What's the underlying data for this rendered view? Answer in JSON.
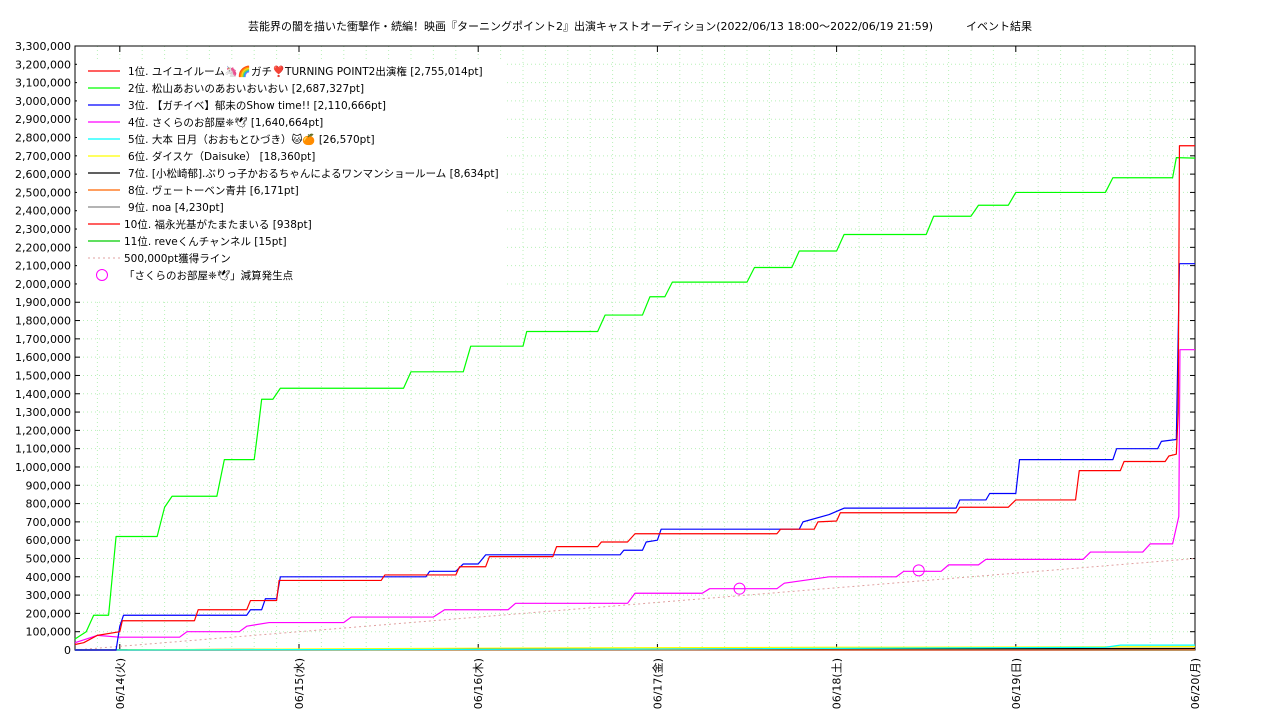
{
  "chart_data": {
    "type": "line",
    "title": "芸能界の闇を描いた衝撃作・続編！映画『ターニングポイント2』出演キャストオーディション(2022/06/13 18:00〜2022/06/19 21:59)　　　イベント結果",
    "xlabel": "",
    "ylabel": "",
    "x_range": [
      "2022-06-13 18:00",
      "2022-06-20 00:00"
    ],
    "ylim": [
      0,
      3300000
    ],
    "y_ticks": [
      "0",
      "100,000",
      "200,000",
      "300,000",
      "400,000",
      "500,000",
      "600,000",
      "700,000",
      "800,000",
      "900,000",
      "1,000,000",
      "1,100,000",
      "1,200,000",
      "1,300,000",
      "1,400,000",
      "1,500,000",
      "1,600,000",
      "1,700,000",
      "1,800,000",
      "1,900,000",
      "2,000,000",
      "2,100,000",
      "2,200,000",
      "2,300,000",
      "2,400,000",
      "2,500,000",
      "2,600,000",
      "2,700,000",
      "2,800,000",
      "2,900,000",
      "3,000,000",
      "3,100,000",
      "3,200,000",
      "3,300,000"
    ],
    "x_ticks": [
      {
        "x": "2022-06-14 00:00",
        "label": "06/14(火)"
      },
      {
        "x": "2022-06-15 00:00",
        "label": "06/15(水)"
      },
      {
        "x": "2022-06-16 00:00",
        "label": "06/16(木)"
      },
      {
        "x": "2022-06-17 00:00",
        "label": "06/17(金)"
      },
      {
        "x": "2022-06-18 00:00",
        "label": "06/18(土)"
      },
      {
        "x": "2022-06-19 00:00",
        "label": "06/19(日)"
      },
      {
        "x": "2022-06-20 00:00",
        "label": "06/20(月)"
      }
    ],
    "grid": true,
    "legend_position": "top-left",
    "series": [
      {
        "name": "1位. ユイユイルーム🦄🌈ガチ❣️TURNING POINT2出演権 [2,755,014pt]",
        "color": "#ff0000",
        "points": [
          [
            "2022-06-13 18:00",
            30000
          ],
          [
            "2022-06-13 19:10",
            40000
          ],
          [
            "2022-06-13 21:00",
            80000
          ],
          [
            "2022-06-14 00:00",
            100000
          ],
          [
            "2022-06-14 00:20",
            160000
          ],
          [
            "2022-06-14 10:00",
            160000
          ],
          [
            "2022-06-14 10:30",
            220000
          ],
          [
            "2022-06-14 17:00",
            220000
          ],
          [
            "2022-06-14 17:30",
            270000
          ],
          [
            "2022-06-14 21:00",
            270000
          ],
          [
            "2022-06-14 21:20",
            380000
          ],
          [
            "2022-06-15 11:00",
            380000
          ],
          [
            "2022-06-15 11:30",
            410000
          ],
          [
            "2022-06-15 21:00",
            410000
          ],
          [
            "2022-06-15 21:30",
            455000
          ],
          [
            "2022-06-16 01:00",
            455000
          ],
          [
            "2022-06-16 01:30",
            510000
          ],
          [
            "2022-06-16 10:00",
            510000
          ],
          [
            "2022-06-16 10:30",
            565000
          ],
          [
            "2022-06-16 16:00",
            565000
          ],
          [
            "2022-06-16 16:30",
            590000
          ],
          [
            "2022-06-16 20:00",
            590000
          ],
          [
            "2022-06-16 21:00",
            635000
          ],
          [
            "2022-06-17 06:00",
            635000
          ],
          [
            "2022-06-17 16:00",
            635000
          ],
          [
            "2022-06-17 16:30",
            660000
          ],
          [
            "2022-06-17 21:00",
            660000
          ],
          [
            "2022-06-17 21:30",
            700000
          ],
          [
            "2022-06-18 00:00",
            705000
          ],
          [
            "2022-06-18 00:30",
            750000
          ],
          [
            "2022-06-18 16:00",
            750000
          ],
          [
            "2022-06-18 16:30",
            780000
          ],
          [
            "2022-06-18 23:00",
            780000
          ],
          [
            "2022-06-19 00:00",
            820000
          ],
          [
            "2022-06-19 08:00",
            820000
          ],
          [
            "2022-06-19 08:30",
            980000
          ],
          [
            "2022-06-19 14:00",
            980000
          ],
          [
            "2022-06-19 14:30",
            1030000
          ],
          [
            "2022-06-19 20:00",
            1030000
          ],
          [
            "2022-06-19 20:30",
            1060000
          ],
          [
            "2022-06-19 21:30",
            1070000
          ],
          [
            "2022-06-19 21:45",
            1300000
          ],
          [
            "2022-06-19 21:55",
            2755014
          ],
          [
            "2022-06-20 00:00",
            2755014
          ]
        ]
      },
      {
        "name": "2位. 松山あおいのあおいおいおい [2,687,327pt]",
        "color": "#00ff00",
        "points": [
          [
            "2022-06-13 18:00",
            60000
          ],
          [
            "2022-06-13 19:30",
            100000
          ],
          [
            "2022-06-13 20:30",
            190000
          ],
          [
            "2022-06-13 22:30",
            190000
          ],
          [
            "2022-06-13 23:30",
            620000
          ],
          [
            "2022-06-14 05:00",
            620000
          ],
          [
            "2022-06-14 06:00",
            780000
          ],
          [
            "2022-06-14 07:00",
            840000
          ],
          [
            "2022-06-14 13:00",
            840000
          ],
          [
            "2022-06-14 14:00",
            1040000
          ],
          [
            "2022-06-14 18:00",
            1040000
          ],
          [
            "2022-06-14 18:30",
            1200000
          ],
          [
            "2022-06-14 19:00",
            1370000
          ],
          [
            "2022-06-14 20:30",
            1370000
          ],
          [
            "2022-06-14 21:30",
            1430000
          ],
          [
            "2022-06-15 14:00",
            1430000
          ],
          [
            "2022-06-15 15:00",
            1520000
          ],
          [
            "2022-06-15 22:00",
            1520000
          ],
          [
            "2022-06-15 23:00",
            1660000
          ],
          [
            "2022-06-16 06:00",
            1660000
          ],
          [
            "2022-06-16 06:30",
            1740000
          ],
          [
            "2022-06-16 16:00",
            1740000
          ],
          [
            "2022-06-16 17:00",
            1830000
          ],
          [
            "2022-06-16 22:00",
            1830000
          ],
          [
            "2022-06-16 23:00",
            1930000
          ],
          [
            "2022-06-17 01:00",
            1930000
          ],
          [
            "2022-06-17 02:00",
            2010000
          ],
          [
            "2022-06-17 12:00",
            2010000
          ],
          [
            "2022-06-17 13:00",
            2090000
          ],
          [
            "2022-06-17 18:00",
            2090000
          ],
          [
            "2022-06-17 19:00",
            2180000
          ],
          [
            "2022-06-18 00:00",
            2180000
          ],
          [
            "2022-06-18 01:00",
            2270000
          ],
          [
            "2022-06-18 12:00",
            2270000
          ],
          [
            "2022-06-18 13:00",
            2370000
          ],
          [
            "2022-06-18 18:00",
            2370000
          ],
          [
            "2022-06-18 19:00",
            2430000
          ],
          [
            "2022-06-18 23:00",
            2430000
          ],
          [
            "2022-06-19 00:00",
            2500000
          ],
          [
            "2022-06-19 12:00",
            2500000
          ],
          [
            "2022-06-19 13:00",
            2580000
          ],
          [
            "2022-06-19 21:00",
            2580000
          ],
          [
            "2022-06-19 21:30",
            2690000
          ],
          [
            "2022-06-20 00:00",
            2687327
          ]
        ]
      },
      {
        "name": "3位. 【ガチイベ】郁未のShow time!! [2,110,666pt]",
        "color": "#0000ff",
        "points": [
          [
            "2022-06-13 18:00",
            0
          ],
          [
            "2022-06-13 23:30",
            0
          ],
          [
            "2022-06-14 00:00",
            130000
          ],
          [
            "2022-06-14 00:30",
            190000
          ],
          [
            "2022-06-14 17:00",
            190000
          ],
          [
            "2022-06-14 17:30",
            220000
          ],
          [
            "2022-06-14 19:00",
            220000
          ],
          [
            "2022-06-14 19:30",
            280000
          ],
          [
            "2022-06-14 21:00",
            280000
          ],
          [
            "2022-06-14 21:30",
            400000
          ],
          [
            "2022-06-15 17:00",
            400000
          ],
          [
            "2022-06-15 17:30",
            430000
          ],
          [
            "2022-06-15 21:00",
            430000
          ],
          [
            "2022-06-15 22:00",
            470000
          ],
          [
            "2022-06-16 00:00",
            470000
          ],
          [
            "2022-06-16 01:00",
            520000
          ],
          [
            "2022-06-16 19:00",
            520000
          ],
          [
            "2022-06-16 19:30",
            545000
          ],
          [
            "2022-06-16 22:00",
            545000
          ],
          [
            "2022-06-16 22:30",
            590000
          ],
          [
            "2022-06-17 00:00",
            600000
          ],
          [
            "2022-06-17 00:30",
            660000
          ],
          [
            "2022-06-17 19:00",
            660000
          ],
          [
            "2022-06-17 19:30",
            700000
          ],
          [
            "2022-06-17 23:00",
            740000
          ],
          [
            "2022-06-18 01:00",
            775000
          ],
          [
            "2022-06-18 16:00",
            775000
          ],
          [
            "2022-06-18 16:30",
            820000
          ],
          [
            "2022-06-18 20:00",
            820000
          ],
          [
            "2022-06-18 20:30",
            855000
          ],
          [
            "2022-06-19 00:00",
            855000
          ],
          [
            "2022-06-19 00:30",
            1040000
          ],
          [
            "2022-06-19 13:00",
            1040000
          ],
          [
            "2022-06-19 13:30",
            1100000
          ],
          [
            "2022-06-19 19:00",
            1100000
          ],
          [
            "2022-06-19 19:30",
            1140000
          ],
          [
            "2022-06-19 21:30",
            1150000
          ],
          [
            "2022-06-19 21:55",
            2110666
          ],
          [
            "2022-06-20 00:00",
            2110666
          ]
        ]
      },
      {
        "name": "4位. さくらのお部屋❈🕊 [1,640,664pt]",
        "color": "#ff00ff",
        "points": [
          [
            "2022-06-13 18:00",
            40000
          ],
          [
            "2022-06-13 19:30",
            60000
          ],
          [
            "2022-06-13 21:00",
            80000
          ],
          [
            "2022-06-14 00:00",
            70000
          ],
          [
            "2022-06-14 08:00",
            70000
          ],
          [
            "2022-06-14 09:00",
            100000
          ],
          [
            "2022-06-14 16:00",
            100000
          ],
          [
            "2022-06-14 17:00",
            130000
          ],
          [
            "2022-06-14 20:00",
            150000
          ],
          [
            "2022-06-15 06:00",
            150000
          ],
          [
            "2022-06-15 07:00",
            180000
          ],
          [
            "2022-06-15 18:00",
            180000
          ],
          [
            "2022-06-15 19:30",
            220000
          ],
          [
            "2022-06-16 04:00",
            220000
          ],
          [
            "2022-06-16 05:00",
            255000
          ],
          [
            "2022-06-16 20:00",
            255000
          ],
          [
            "2022-06-16 21:00",
            310000
          ],
          [
            "2022-06-17 06:00",
            310000
          ],
          [
            "2022-06-17 07:00",
            335000
          ],
          [
            "2022-06-17 16:00",
            335000
          ],
          [
            "2022-06-17 17:00",
            365000
          ],
          [
            "2022-06-17 23:00",
            400000
          ],
          [
            "2022-06-18 08:00",
            400000
          ],
          [
            "2022-06-18 09:00",
            430000
          ],
          [
            "2022-06-18 14:00",
            430000
          ],
          [
            "2022-06-18 15:00",
            465000
          ],
          [
            "2022-06-18 19:00",
            465000
          ],
          [
            "2022-06-18 20:00",
            495000
          ],
          [
            "2022-06-19 09:00",
            495000
          ],
          [
            "2022-06-19 10:00",
            535000
          ],
          [
            "2022-06-19 17:00",
            535000
          ],
          [
            "2022-06-19 18:00",
            580000
          ],
          [
            "2022-06-19 21:00",
            580000
          ],
          [
            "2022-06-19 21:50",
            730000
          ],
          [
            "2022-06-19 21:59",
            1640664
          ],
          [
            "2022-06-20 00:00",
            1640664
          ]
        ]
      },
      {
        "name": "5位. 大本 日月（おおもとひづき）🐱🍊 [26,570pt]",
        "color": "#00ffff",
        "points": [
          [
            "2022-06-13 18:00",
            0
          ],
          [
            "2022-06-17 00:00",
            5000
          ],
          [
            "2022-06-19 12:00",
            15000
          ],
          [
            "2022-06-19 14:00",
            26570
          ],
          [
            "2022-06-20 00:00",
            26570
          ]
        ]
      },
      {
        "name": "6位. ダイスケ（Daisuke） [18,360pt]",
        "color": "#ffff00",
        "points": [
          [
            "2022-06-13 18:00",
            0
          ],
          [
            "2022-06-16 00:00",
            10000
          ],
          [
            "2022-06-18 00:00",
            15000
          ],
          [
            "2022-06-20 00:00",
            18360
          ]
        ]
      },
      {
        "name": "7位. [小松崎郁].ぶりっ子かおるちゃんによるワンマンショールーム [8,634pt]",
        "color": "#000000",
        "points": [
          [
            "2022-06-13 18:00",
            0
          ],
          [
            "2022-06-15 00:00",
            4000
          ],
          [
            "2022-06-20 00:00",
            8634
          ]
        ]
      },
      {
        "name": "8位. ヴェートーベン青井 [6,171pt]",
        "color": "#ff6600",
        "points": [
          [
            "2022-06-13 18:00",
            0
          ],
          [
            "2022-06-20 00:00",
            6171
          ]
        ]
      },
      {
        "name": "9位. noa [4,230pt]",
        "color": "#888888",
        "points": [
          [
            "2022-06-13 18:00",
            0
          ],
          [
            "2022-06-20 00:00",
            4230
          ]
        ]
      },
      {
        "name": "10位. 福永光基がたまたまいる [938pt]",
        "color": "#ff0000",
        "points": [
          [
            "2022-06-13 18:00",
            0
          ],
          [
            "2022-06-20 00:00",
            938
          ]
        ]
      },
      {
        "name": "11位. reveくんチャンネル [15pt]",
        "color": "#00cc00",
        "points": [
          [
            "2022-06-13 18:00",
            0
          ],
          [
            "2022-06-20 00:00",
            15
          ]
        ]
      }
    ],
    "reference_line": {
      "name": "500,000pt獲得ライン",
      "color": "#e0a0a0",
      "points": [
        [
          "2022-06-13 18:00",
          0
        ],
        [
          "2022-06-20 00:00",
          500000
        ]
      ]
    },
    "markers": {
      "name": "「さくらのお部屋❈🕊」減算発生点",
      "color": "#ff00ff",
      "points": [
        [
          "2022-06-17 11:00",
          335000
        ],
        [
          "2022-06-18 11:00",
          435000
        ]
      ]
    }
  }
}
